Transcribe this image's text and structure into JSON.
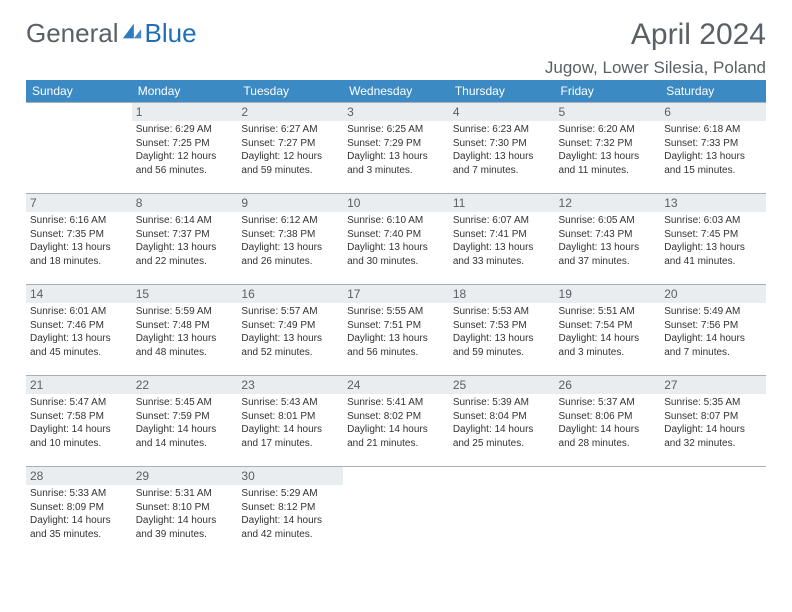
{
  "logo": {
    "part1": "General",
    "part2": "Blue"
  },
  "title": "April 2024",
  "location": "Jugow, Lower Silesia, Poland",
  "style": {
    "header_bg": "#3b8ac4",
    "header_fg": "#ffffff",
    "daynum_bg": "#e9edf0",
    "border": "#a9b0b5",
    "title_fontsize": 30,
    "loc_fontsize": 17,
    "info_fontsize": 10,
    "daynum_fontsize": 12
  },
  "weekdays": [
    "Sunday",
    "Monday",
    "Tuesday",
    "Wednesday",
    "Thursday",
    "Friday",
    "Saturday"
  ],
  "first_day_index": 1,
  "days": [
    {
      "n": 1,
      "sr": "6:29 AM",
      "ss": "7:25 PM",
      "dl": "12 hours and 56 minutes."
    },
    {
      "n": 2,
      "sr": "6:27 AM",
      "ss": "7:27 PM",
      "dl": "12 hours and 59 minutes."
    },
    {
      "n": 3,
      "sr": "6:25 AM",
      "ss": "7:29 PM",
      "dl": "13 hours and 3 minutes."
    },
    {
      "n": 4,
      "sr": "6:23 AM",
      "ss": "7:30 PM",
      "dl": "13 hours and 7 minutes."
    },
    {
      "n": 5,
      "sr": "6:20 AM",
      "ss": "7:32 PM",
      "dl": "13 hours and 11 minutes."
    },
    {
      "n": 6,
      "sr": "6:18 AM",
      "ss": "7:33 PM",
      "dl": "13 hours and 15 minutes."
    },
    {
      "n": 7,
      "sr": "6:16 AM",
      "ss": "7:35 PM",
      "dl": "13 hours and 18 minutes."
    },
    {
      "n": 8,
      "sr": "6:14 AM",
      "ss": "7:37 PM",
      "dl": "13 hours and 22 minutes."
    },
    {
      "n": 9,
      "sr": "6:12 AM",
      "ss": "7:38 PM",
      "dl": "13 hours and 26 minutes."
    },
    {
      "n": 10,
      "sr": "6:10 AM",
      "ss": "7:40 PM",
      "dl": "13 hours and 30 minutes."
    },
    {
      "n": 11,
      "sr": "6:07 AM",
      "ss": "7:41 PM",
      "dl": "13 hours and 33 minutes."
    },
    {
      "n": 12,
      "sr": "6:05 AM",
      "ss": "7:43 PM",
      "dl": "13 hours and 37 minutes."
    },
    {
      "n": 13,
      "sr": "6:03 AM",
      "ss": "7:45 PM",
      "dl": "13 hours and 41 minutes."
    },
    {
      "n": 14,
      "sr": "6:01 AM",
      "ss": "7:46 PM",
      "dl": "13 hours and 45 minutes."
    },
    {
      "n": 15,
      "sr": "5:59 AM",
      "ss": "7:48 PM",
      "dl": "13 hours and 48 minutes."
    },
    {
      "n": 16,
      "sr": "5:57 AM",
      "ss": "7:49 PM",
      "dl": "13 hours and 52 minutes."
    },
    {
      "n": 17,
      "sr": "5:55 AM",
      "ss": "7:51 PM",
      "dl": "13 hours and 56 minutes."
    },
    {
      "n": 18,
      "sr": "5:53 AM",
      "ss": "7:53 PM",
      "dl": "13 hours and 59 minutes."
    },
    {
      "n": 19,
      "sr": "5:51 AM",
      "ss": "7:54 PM",
      "dl": "14 hours and 3 minutes."
    },
    {
      "n": 20,
      "sr": "5:49 AM",
      "ss": "7:56 PM",
      "dl": "14 hours and 7 minutes."
    },
    {
      "n": 21,
      "sr": "5:47 AM",
      "ss": "7:58 PM",
      "dl": "14 hours and 10 minutes."
    },
    {
      "n": 22,
      "sr": "5:45 AM",
      "ss": "7:59 PM",
      "dl": "14 hours and 14 minutes."
    },
    {
      "n": 23,
      "sr": "5:43 AM",
      "ss": "8:01 PM",
      "dl": "14 hours and 17 minutes."
    },
    {
      "n": 24,
      "sr": "5:41 AM",
      "ss": "8:02 PM",
      "dl": "14 hours and 21 minutes."
    },
    {
      "n": 25,
      "sr": "5:39 AM",
      "ss": "8:04 PM",
      "dl": "14 hours and 25 minutes."
    },
    {
      "n": 26,
      "sr": "5:37 AM",
      "ss": "8:06 PM",
      "dl": "14 hours and 28 minutes."
    },
    {
      "n": 27,
      "sr": "5:35 AM",
      "ss": "8:07 PM",
      "dl": "14 hours and 32 minutes."
    },
    {
      "n": 28,
      "sr": "5:33 AM",
      "ss": "8:09 PM",
      "dl": "14 hours and 35 minutes."
    },
    {
      "n": 29,
      "sr": "5:31 AM",
      "ss": "8:10 PM",
      "dl": "14 hours and 39 minutes."
    },
    {
      "n": 30,
      "sr": "5:29 AM",
      "ss": "8:12 PM",
      "dl": "14 hours and 42 minutes."
    }
  ]
}
